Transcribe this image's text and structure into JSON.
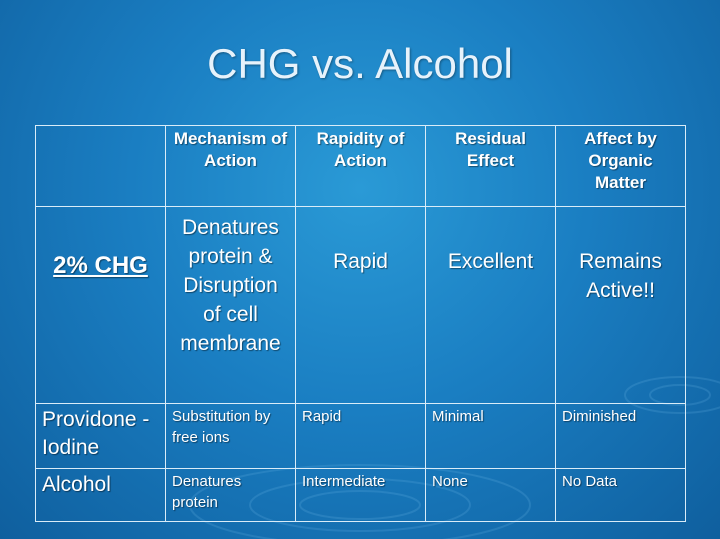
{
  "slide": {
    "title": "CHG vs. Alcohol",
    "headers": [
      "",
      "Mechanism of Action",
      "Rapidity of Action",
      "Residual Effect",
      "Affect by Organic Matter"
    ],
    "rows": [
      [
        "2% CHG",
        "Denatures protein & Disruption of cell membrane",
        "Rapid",
        "Excellent",
        "Remains Active!!"
      ],
      [
        "Providone -Iodine",
        "Substitution by free ions",
        "Rapid",
        "Minimal",
        "Diminished"
      ],
      [
        "Alcohol",
        "Denatures protein",
        "Intermediate",
        "None",
        "No Data"
      ]
    ]
  }
}
